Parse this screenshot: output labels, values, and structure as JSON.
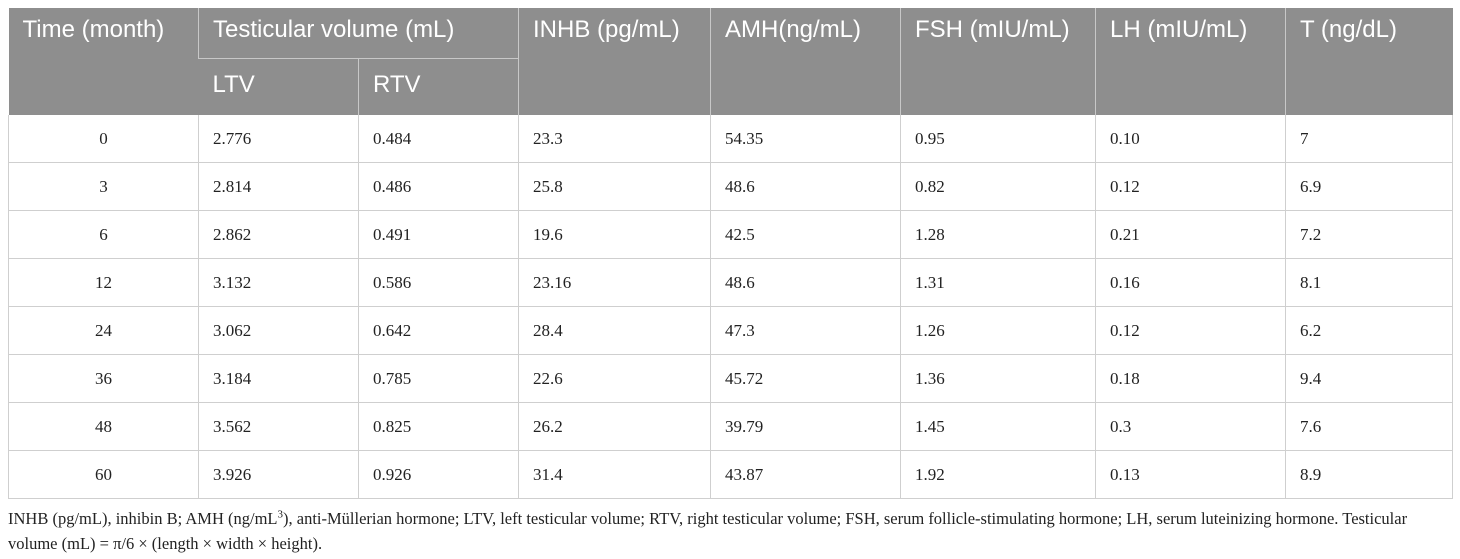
{
  "table": {
    "headers": {
      "time": "Time (month)",
      "testicular_volume": "Testicular volume (mL)",
      "ltv": "LTV",
      "rtv": "RTV",
      "inhb": "INHB (pg/mL)",
      "amh": "AMH(ng/mL)",
      "fsh": "FSH (mIU/mL)",
      "lh": "LH (mIU/mL)",
      "t": "T (ng/dL)"
    },
    "rows": [
      [
        "0",
        "2.776",
        "0.484",
        "23.3",
        "54.35",
        "0.95",
        "0.10",
        "7"
      ],
      [
        "3",
        "2.814",
        "0.486",
        "25.8",
        "48.6",
        "0.82",
        "0.12",
        "6.9"
      ],
      [
        "6",
        "2.862",
        "0.491",
        "19.6",
        "42.5",
        "1.28",
        "0.21",
        "7.2"
      ],
      [
        "12",
        "3.132",
        "0.586",
        "23.16",
        "48.6",
        "1.31",
        "0.16",
        "8.1"
      ],
      [
        "24",
        "3.062",
        "0.642",
        "28.4",
        "47.3",
        "1.26",
        "0.12",
        "6.2"
      ],
      [
        "36",
        "3.184",
        "0.785",
        "22.6",
        "45.72",
        "1.36",
        "0.18",
        "9.4"
      ],
      [
        "48",
        "3.562",
        "0.825",
        "26.2",
        "39.79",
        "1.45",
        "0.3",
        "7.6"
      ],
      [
        "60",
        "3.926",
        "0.926",
        "31.4",
        "43.87",
        "1.92",
        "0.13",
        "8.9"
      ]
    ]
  },
  "footnote": {
    "part1": "INHB (pg/mL), inhibin B; AMH (ng/mL",
    "sup": "3",
    "part2": "), anti-Müllerian hormone; LTV, left testicular volume; RTV, right testicular volume; FSH, serum follicle-stimulating hormone; LH, serum luteinizing hormone. Testicular volume (mL) = π/6 × (length × width × height)."
  }
}
